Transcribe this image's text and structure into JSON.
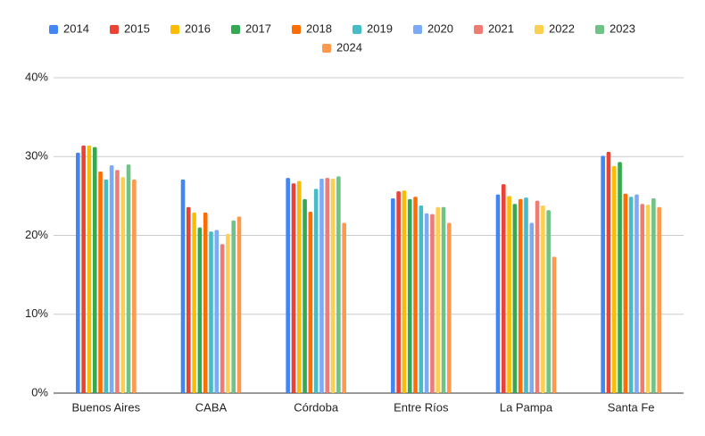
{
  "chart_data": {
    "type": "bar",
    "categories": [
      "Buenos Aires",
      "CABA",
      "Córdoba",
      "Entre Ríos",
      "La Pampa",
      "Santa Fe"
    ],
    "ylim": [
      0,
      40
    ],
    "yticks": [
      {
        "value": 0,
        "label": "0%"
      },
      {
        "value": 10,
        "label": "10%"
      },
      {
        "value": 20,
        "label": "20%"
      },
      {
        "value": 30,
        "label": "30%"
      },
      {
        "value": 40,
        "label": "40%"
      }
    ],
    "grid": true,
    "legend": "top",
    "series": [
      {
        "name": "2014",
        "color": "#4285f4",
        "values": [
          30.5,
          27.1,
          27.3,
          24.7,
          25.2,
          30.1
        ]
      },
      {
        "name": "2015",
        "color": "#ea4335",
        "values": [
          31.4,
          23.6,
          26.6,
          25.6,
          26.5,
          30.6
        ]
      },
      {
        "name": "2016",
        "color": "#fbbc04",
        "values": [
          31.4,
          22.9,
          26.9,
          25.7,
          25.0,
          28.8
        ]
      },
      {
        "name": "2017",
        "color": "#34a853",
        "values": [
          31.2,
          21.0,
          24.6,
          24.6,
          24.0,
          29.3
        ]
      },
      {
        "name": "2018",
        "color": "#ff6d01",
        "values": [
          28.1,
          22.9,
          23.0,
          24.9,
          24.6,
          25.3
        ]
      },
      {
        "name": "2019",
        "color": "#46bdc6",
        "values": [
          27.1,
          20.5,
          25.9,
          23.8,
          24.8,
          24.9
        ]
      },
      {
        "name": "2020",
        "color": "#7baaf7",
        "values": [
          28.9,
          20.7,
          27.2,
          22.8,
          21.6,
          25.2
        ]
      },
      {
        "name": "2021",
        "color": "#f07b72",
        "values": [
          28.3,
          18.9,
          27.3,
          22.7,
          24.4,
          24.0
        ]
      },
      {
        "name": "2022",
        "color": "#fcd04f",
        "values": [
          27.4,
          20.2,
          27.2,
          23.6,
          23.8,
          23.9
        ]
      },
      {
        "name": "2023",
        "color": "#71c287",
        "values": [
          29.0,
          21.9,
          27.5,
          23.6,
          23.2,
          24.7
        ]
      },
      {
        "name": "2024",
        "color": "#ff994d",
        "values": [
          27.1,
          22.4,
          21.6,
          21.6,
          17.3,
          23.6
        ]
      }
    ]
  }
}
